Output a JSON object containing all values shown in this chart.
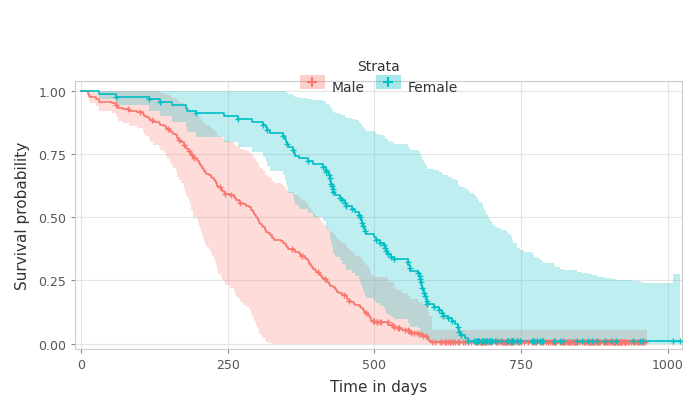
{
  "xlabel": "Time in days",
  "ylabel": "Survival probability",
  "legend_title": "Strata",
  "legend_labels": [
    "Male",
    "Female"
  ],
  "male_color": "#F8766D",
  "female_color": "#00BFC4",
  "fill_alpha": 0.25,
  "xlim": [
    -10,
    1025
  ],
  "ylim": [
    -0.02,
    1.04
  ],
  "xticks": [
    0,
    250,
    500,
    750,
    1000
  ],
  "yticks": [
    0.0,
    0.25,
    0.5,
    0.75,
    1.0
  ],
  "grid_color": "#E5E5E5",
  "male_t": [
    0,
    11,
    12,
    13,
    15,
    26,
    30,
    31,
    53,
    59,
    61,
    63,
    71,
    81,
    95,
    105,
    107,
    110,
    116,
    118,
    122,
    132,
    135,
    142,
    144,
    147,
    151,
    153,
    156,
    162,
    163,
    164,
    166,
    170,
    175,
    176,
    177,
    179,
    180,
    183,
    185,
    187,
    188,
    190,
    191,
    197,
    199,
    201,
    202,
    205,
    206,
    208,
    210,
    211,
    212,
    218,
    222,
    223,
    226,
    229,
    230,
    231,
    232,
    233,
    239,
    240,
    243,
    245,
    254,
    261,
    263,
    264,
    269,
    270,
    276,
    281,
    287,
    289,
    290,
    293,
    295,
    296,
    298,
    300,
    301,
    303,
    304,
    305,
    308,
    310,
    313,
    314,
    316,
    319,
    322,
    325,
    326,
    329,
    340,
    345,
    348,
    349,
    351,
    353,
    363,
    364,
    371,
    374,
    375,
    382,
    383,
    386,
    388,
    389,
    392,
    393,
    395,
    399,
    401,
    406,
    408,
    409,
    411,
    414,
    419,
    420,
    422,
    425,
    430,
    433,
    434,
    436,
    440,
    445,
    452,
    453,
    454,
    457,
    460,
    465,
    467,
    475,
    477,
    481,
    482,
    485,
    489,
    491,
    493,
    494,
    495,
    500,
    524,
    533,
    537,
    547,
    558,
    561,
    574,
    583,
    591,
    592,
    594,
    598,
    638,
    641,
    643,
    655,
    663,
    687,
    702,
    707,
    765,
    791,
    814,
    883,
    965
  ],
  "male_s": [
    1.0,
    0.994,
    0.988,
    0.982,
    0.976,
    0.97,
    0.964,
    0.958,
    0.952,
    0.946,
    0.94,
    0.933,
    0.927,
    0.921,
    0.915,
    0.909,
    0.903,
    0.897,
    0.891,
    0.885,
    0.879,
    0.873,
    0.867,
    0.861,
    0.855,
    0.848,
    0.842,
    0.836,
    0.83,
    0.824,
    0.818,
    0.812,
    0.806,
    0.8,
    0.794,
    0.788,
    0.782,
    0.776,
    0.769,
    0.763,
    0.757,
    0.751,
    0.745,
    0.739,
    0.733,
    0.727,
    0.721,
    0.715,
    0.709,
    0.703,
    0.697,
    0.691,
    0.684,
    0.678,
    0.672,
    0.666,
    0.66,
    0.654,
    0.648,
    0.642,
    0.636,
    0.63,
    0.624,
    0.618,
    0.612,
    0.606,
    0.6,
    0.593,
    0.587,
    0.581,
    0.575,
    0.569,
    0.563,
    0.557,
    0.551,
    0.545,
    0.539,
    0.533,
    0.527,
    0.521,
    0.514,
    0.508,
    0.502,
    0.496,
    0.49,
    0.484,
    0.478,
    0.472,
    0.466,
    0.46,
    0.454,
    0.448,
    0.442,
    0.436,
    0.43,
    0.423,
    0.417,
    0.411,
    0.405,
    0.399,
    0.393,
    0.387,
    0.381,
    0.375,
    0.369,
    0.363,
    0.357,
    0.351,
    0.345,
    0.339,
    0.333,
    0.326,
    0.32,
    0.314,
    0.308,
    0.302,
    0.296,
    0.29,
    0.284,
    0.278,
    0.272,
    0.266,
    0.26,
    0.254,
    0.248,
    0.242,
    0.235,
    0.229,
    0.223,
    0.217,
    0.211,
    0.205,
    0.199,
    0.193,
    0.187,
    0.181,
    0.175,
    0.169,
    0.163,
    0.157,
    0.151,
    0.145,
    0.139,
    0.132,
    0.126,
    0.12,
    0.114,
    0.108,
    0.102,
    0.096,
    0.09,
    0.084,
    0.075,
    0.066,
    0.06,
    0.054,
    0.048,
    0.042,
    0.036,
    0.03,
    0.024,
    0.018,
    0.012,
    0.006,
    0.006,
    0.006,
    0.006,
    0.006,
    0.006,
    0.006,
    0.006,
    0.006,
    0.006,
    0.006,
    0.006,
    0.006,
    0.006
  ],
  "male_upper": [
    1.0,
    1.0,
    1.0,
    1.0,
    1.0,
    1.0,
    1.0,
    1.0,
    1.0,
    1.0,
    1.0,
    1.0,
    1.0,
    1.0,
    1.0,
    1.0,
    1.0,
    1.0,
    1.0,
    1.0,
    0.999,
    0.996,
    0.993,
    0.99,
    0.987,
    0.983,
    0.98,
    0.976,
    0.973,
    0.969,
    0.966,
    0.962,
    0.958,
    0.954,
    0.95,
    0.946,
    0.942,
    0.938,
    0.934,
    0.93,
    0.926,
    0.922,
    0.918,
    0.913,
    0.909,
    0.905,
    0.9,
    0.896,
    0.892,
    0.887,
    0.883,
    0.878,
    0.874,
    0.869,
    0.865,
    0.86,
    0.855,
    0.851,
    0.846,
    0.841,
    0.837,
    0.832,
    0.827,
    0.822,
    0.817,
    0.812,
    0.807,
    0.802,
    0.797,
    0.792,
    0.787,
    0.782,
    0.777,
    0.772,
    0.767,
    0.762,
    0.756,
    0.751,
    0.746,
    0.74,
    0.735,
    0.729,
    0.724,
    0.718,
    0.713,
    0.707,
    0.701,
    0.696,
    0.69,
    0.684,
    0.678,
    0.673,
    0.667,
    0.661,
    0.655,
    0.649,
    0.643,
    0.637,
    0.631,
    0.625,
    0.619,
    0.613,
    0.607,
    0.6,
    0.594,
    0.588,
    0.582,
    0.575,
    0.569,
    0.563,
    0.556,
    0.55,
    0.543,
    0.537,
    0.53,
    0.524,
    0.517,
    0.51,
    0.504,
    0.497,
    0.49,
    0.483,
    0.477,
    0.47,
    0.463,
    0.456,
    0.449,
    0.442,
    0.435,
    0.428,
    0.421,
    0.414,
    0.407,
    0.4,
    0.392,
    0.385,
    0.378,
    0.371,
    0.363,
    0.356,
    0.348,
    0.341,
    0.333,
    0.326,
    0.318,
    0.31,
    0.303,
    0.295,
    0.287,
    0.279,
    0.271,
    0.263,
    0.245,
    0.224,
    0.213,
    0.201,
    0.188,
    0.175,
    0.163,
    0.151,
    0.139,
    0.127,
    0.109,
    0.055,
    0.055,
    0.055,
    0.055,
    0.055,
    0.055,
    0.055,
    0.055,
    0.055,
    0.055,
    0.055,
    0.055,
    0.055,
    0.055
  ],
  "male_lower": [
    1.0,
    0.982,
    0.971,
    0.96,
    0.951,
    0.941,
    0.932,
    0.922,
    0.913,
    0.903,
    0.893,
    0.883,
    0.873,
    0.863,
    0.852,
    0.842,
    0.831,
    0.821,
    0.81,
    0.799,
    0.788,
    0.777,
    0.766,
    0.754,
    0.743,
    0.731,
    0.72,
    0.708,
    0.696,
    0.684,
    0.672,
    0.66,
    0.648,
    0.636,
    0.624,
    0.612,
    0.6,
    0.588,
    0.576,
    0.563,
    0.551,
    0.539,
    0.527,
    0.515,
    0.503,
    0.49,
    0.478,
    0.466,
    0.454,
    0.442,
    0.43,
    0.418,
    0.406,
    0.394,
    0.382,
    0.37,
    0.358,
    0.346,
    0.334,
    0.323,
    0.311,
    0.299,
    0.288,
    0.276,
    0.265,
    0.253,
    0.242,
    0.231,
    0.219,
    0.208,
    0.197,
    0.186,
    0.175,
    0.165,
    0.154,
    0.143,
    0.133,
    0.123,
    0.113,
    0.103,
    0.093,
    0.084,
    0.075,
    0.066,
    0.057,
    0.049,
    0.041,
    0.034,
    0.027,
    0.021,
    0.015,
    0.01,
    0.006,
    0.003,
    0.001,
    0.0,
    0.0,
    0.0,
    0.0,
    0.0,
    0.0,
    0.0,
    0.0,
    0.0,
    0.0,
    0.0,
    0.0,
    0.0,
    0.0,
    0.0,
    0.0,
    0.0,
    0.0,
    0.0,
    0.0,
    0.0,
    0.0,
    0.0,
    0.0,
    0.0,
    0.0,
    0.0,
    0.0,
    0.0,
    0.0,
    0.0,
    0.0,
    0.0,
    0.0,
    0.0,
    0.0,
    0.0,
    0.0,
    0.0,
    0.0,
    0.0,
    0.0,
    0.0,
    0.0,
    0.0,
    0.0,
    0.0,
    0.0,
    0.0,
    0.0,
    0.0,
    0.0,
    0.0,
    0.0,
    0.0,
    0.0,
    0.0,
    0.0,
    0.0,
    0.0,
    0.0,
    0.0,
    0.0,
    0.0,
    0.0,
    0.0,
    0.0,
    0.0,
    0.0,
    0.0,
    0.0,
    0.0,
    0.0,
    0.0,
    0.0,
    0.0,
    0.0,
    0.0,
    0.0,
    0.0,
    0.0,
    0.0
  ],
  "female_t": [
    0,
    30,
    59,
    115,
    135,
    155,
    179,
    180,
    195,
    244,
    268,
    292,
    310,
    316,
    317,
    322,
    345,
    348,
    350,
    351,
    353,
    362,
    363,
    364,
    371,
    387,
    395,
    412,
    417,
    418,
    423,
    424,
    425,
    426,
    427,
    429,
    430,
    433,
    442,
    444,
    450,
    451,
    462,
    467,
    474,
    476,
    477,
    479,
    481,
    482,
    484,
    485,
    485,
    500,
    503,
    509,
    516,
    518,
    520,
    524,
    529,
    533,
    557,
    558,
    560,
    560,
    561,
    574,
    577,
    578,
    579,
    580,
    581,
    583,
    584,
    587,
    588,
    589,
    590,
    601,
    610,
    616,
    617,
    625,
    632,
    638,
    642,
    643,
    644,
    644,
    648,
    655,
    660,
    663,
    670,
    674,
    675,
    676,
    678,
    684,
    685,
    686,
    687,
    688,
    690,
    692,
    693,
    695,
    697,
    700,
    701,
    706,
    710,
    716,
    726,
    728,
    733,
    734,
    735,
    736,
    737,
    743,
    744,
    744,
    749,
    756,
    769,
    770,
    773,
    777,
    783,
    786,
    788,
    806,
    807,
    808,
    817,
    822,
    845,
    855,
    865,
    871,
    880,
    893,
    904,
    912,
    941,
    953,
    958,
    1010,
    1022
  ],
  "female_s": [
    1.0,
    0.989,
    0.978,
    0.967,
    0.956,
    0.944,
    0.933,
    0.922,
    0.911,
    0.9,
    0.889,
    0.878,
    0.867,
    0.856,
    0.844,
    0.833,
    0.822,
    0.811,
    0.8,
    0.789,
    0.778,
    0.767,
    0.756,
    0.744,
    0.733,
    0.722,
    0.711,
    0.7,
    0.689,
    0.678,
    0.667,
    0.656,
    0.644,
    0.633,
    0.622,
    0.611,
    0.6,
    0.589,
    0.578,
    0.567,
    0.556,
    0.544,
    0.533,
    0.522,
    0.511,
    0.5,
    0.489,
    0.478,
    0.467,
    0.456,
    0.444,
    0.433,
    0.433,
    0.422,
    0.411,
    0.4,
    0.389,
    0.378,
    0.367,
    0.356,
    0.344,
    0.333,
    0.322,
    0.311,
    0.3,
    0.3,
    0.289,
    0.278,
    0.267,
    0.256,
    0.244,
    0.233,
    0.222,
    0.211,
    0.2,
    0.189,
    0.178,
    0.167,
    0.156,
    0.144,
    0.133,
    0.122,
    0.111,
    0.1,
    0.089,
    0.078,
    0.067,
    0.056,
    0.044,
    0.044,
    0.033,
    0.022,
    0.011,
    0.011,
    0.011,
    0.011,
    0.011,
    0.011,
    0.011,
    0.011,
    0.011,
    0.011,
    0.011,
    0.011,
    0.011,
    0.011,
    0.011,
    0.011,
    0.011,
    0.011,
    0.011,
    0.011,
    0.011,
    0.011,
    0.011,
    0.011,
    0.011,
    0.011,
    0.011,
    0.011,
    0.011,
    0.011,
    0.011,
    0.011,
    0.011,
    0.011,
    0.011,
    0.011,
    0.011,
    0.011,
    0.011,
    0.011,
    0.011,
    0.011,
    0.011,
    0.011,
    0.011,
    0.011,
    0.011,
    0.011,
    0.011,
    0.011,
    0.011,
    0.011,
    0.011,
    0.011,
    0.011,
    0.011,
    0.011,
    0.011,
    0.011
  ],
  "female_upper": [
    1.0,
    1.0,
    1.0,
    1.0,
    1.0,
    1.0,
    1.0,
    1.0,
    1.0,
    1.0,
    1.0,
    1.0,
    1.0,
    1.0,
    1.0,
    1.0,
    1.0,
    0.999,
    0.995,
    0.992,
    0.988,
    0.984,
    0.98,
    0.976,
    0.972,
    0.968,
    0.963,
    0.959,
    0.955,
    0.95,
    0.946,
    0.941,
    0.937,
    0.932,
    0.928,
    0.923,
    0.918,
    0.913,
    0.909,
    0.904,
    0.899,
    0.894,
    0.889,
    0.884,
    0.879,
    0.874,
    0.868,
    0.863,
    0.858,
    0.853,
    0.847,
    0.842,
    0.842,
    0.836,
    0.831,
    0.825,
    0.82,
    0.814,
    0.808,
    0.803,
    0.797,
    0.791,
    0.785,
    0.78,
    0.774,
    0.774,
    0.768,
    0.762,
    0.756,
    0.75,
    0.743,
    0.737,
    0.731,
    0.725,
    0.718,
    0.712,
    0.706,
    0.699,
    0.693,
    0.686,
    0.68,
    0.673,
    0.666,
    0.66,
    0.653,
    0.646,
    0.639,
    0.632,
    0.625,
    0.625,
    0.618,
    0.611,
    0.604,
    0.597,
    0.589,
    0.582,
    0.575,
    0.567,
    0.56,
    0.553,
    0.545,
    0.538,
    0.53,
    0.523,
    0.515,
    0.508,
    0.5,
    0.493,
    0.485,
    0.478,
    0.47,
    0.463,
    0.456,
    0.448,
    0.441,
    0.434,
    0.426,
    0.419,
    0.412,
    0.405,
    0.398,
    0.391,
    0.384,
    0.377,
    0.37,
    0.364,
    0.357,
    0.35,
    0.344,
    0.337,
    0.331,
    0.325,
    0.319,
    0.313,
    0.307,
    0.302,
    0.296,
    0.291,
    0.285,
    0.28,
    0.275,
    0.27,
    0.265,
    0.26,
    0.255,
    0.251,
    0.246,
    0.242,
    0.238,
    0.275,
    0.275
  ],
  "female_lower": [
    1.0,
    0.968,
    0.944,
    0.921,
    0.9,
    0.878,
    0.858,
    0.837,
    0.817,
    0.797,
    0.778,
    0.759,
    0.74,
    0.721,
    0.702,
    0.684,
    0.666,
    0.648,
    0.631,
    0.614,
    0.597,
    0.58,
    0.564,
    0.547,
    0.531,
    0.516,
    0.5,
    0.485,
    0.47,
    0.455,
    0.44,
    0.426,
    0.412,
    0.397,
    0.383,
    0.37,
    0.356,
    0.343,
    0.33,
    0.317,
    0.304,
    0.292,
    0.279,
    0.267,
    0.255,
    0.244,
    0.232,
    0.221,
    0.21,
    0.2,
    0.189,
    0.179,
    0.179,
    0.169,
    0.159,
    0.15,
    0.14,
    0.131,
    0.122,
    0.114,
    0.105,
    0.097,
    0.089,
    0.082,
    0.074,
    0.074,
    0.067,
    0.061,
    0.055,
    0.049,
    0.043,
    0.038,
    0.033,
    0.028,
    0.024,
    0.02,
    0.016,
    0.013,
    0.01,
    0.008,
    0.006,
    0.004,
    0.002,
    0.001,
    0.001,
    0.0,
    0.0,
    0.0,
    0.0,
    0.0,
    0.0,
    0.0,
    0.0,
    0.0,
    0.0,
    0.0,
    0.0,
    0.0,
    0.0,
    0.0,
    0.0,
    0.0,
    0.0,
    0.0,
    0.0,
    0.0,
    0.0,
    0.0,
    0.0,
    0.0,
    0.0,
    0.0,
    0.0,
    0.0,
    0.0,
    0.0,
    0.0,
    0.0,
    0.0,
    0.0,
    0.0,
    0.0,
    0.0,
    0.0,
    0.0,
    0.0,
    0.0,
    0.0,
    0.0,
    0.0,
    0.0,
    0.0,
    0.0,
    0.0,
    0.0,
    0.0,
    0.0,
    0.0,
    0.0,
    0.0,
    0.0,
    0.0,
    0.0,
    0.0,
    0.0,
    0.0,
    0.0,
    0.0,
    0.0,
    0.0,
    0.0
  ],
  "male_censor_t": [
    60,
    80,
    100,
    120,
    148,
    167,
    176,
    184,
    189,
    192,
    236,
    246,
    255,
    271,
    359,
    376,
    404,
    415,
    449,
    457,
    485,
    497,
    499,
    504,
    505,
    509,
    512,
    523,
    530,
    534,
    540,
    542,
    552,
    557,
    559,
    563,
    567,
    572,
    576,
    580,
    583,
    588,
    598,
    604,
    612,
    616,
    621,
    622,
    625,
    629,
    631,
    634,
    637,
    643,
    644,
    652,
    654,
    659,
    664,
    671,
    674,
    675,
    677,
    681,
    682,
    683,
    684,
    685,
    686,
    688,
    689,
    691,
    693,
    697,
    699,
    707,
    710,
    712,
    717,
    720,
    721,
    722,
    723,
    725,
    727,
    730,
    731,
    733,
    734,
    735,
    736,
    740,
    745,
    747,
    750,
    756,
    762,
    769,
    771,
    774,
    775,
    783,
    785,
    787,
    788,
    792,
    796,
    799,
    803,
    806,
    807,
    808,
    809,
    816,
    819,
    820,
    821,
    823,
    826,
    829,
    831,
    832,
    833,
    836,
    839,
    840,
    842,
    844,
    845,
    849,
    855,
    857,
    860,
    861,
    865,
    866,
    867,
    868,
    870,
    871,
    873,
    875,
    876,
    879,
    880,
    882,
    883,
    884,
    890,
    892,
    893,
    895,
    897,
    899,
    902,
    906,
    907,
    908,
    909,
    910,
    911,
    914,
    915,
    917,
    918,
    919,
    920,
    921,
    923,
    925,
    927,
    930,
    933,
    935,
    938,
    941,
    943,
    944,
    948,
    949,
    951,
    953,
    956,
    957,
    958,
    961,
    968,
    971,
    976,
    979,
    982,
    983,
    988,
    991,
    998,
    1000,
    1005,
    1011,
    1022
  ],
  "female_censor_t": [
    60,
    115,
    135,
    195,
    268,
    310,
    317,
    345,
    351,
    362,
    387,
    412,
    417,
    418,
    423,
    424,
    426,
    427,
    429,
    430,
    442,
    444,
    450,
    451,
    462,
    474,
    476,
    479,
    481,
    484,
    503,
    509,
    516,
    518,
    520,
    524,
    529,
    533,
    557,
    560,
    574,
    577,
    578,
    579,
    581,
    584,
    587,
    589,
    590,
    601,
    610,
    616,
    617,
    625,
    632,
    642,
    644,
    648,
    660,
    670,
    674,
    675,
    676,
    678,
    684,
    685,
    686,
    688,
    690,
    692,
    695,
    697,
    700,
    701,
    706,
    710,
    716,
    726,
    728,
    733,
    734,
    735,
    736,
    737,
    743,
    744,
    749,
    769,
    770,
    773,
    777,
    783,
    786,
    788,
    806,
    807,
    817,
    822,
    845,
    855,
    865,
    871,
    880,
    893,
    904,
    912,
    941,
    953,
    958,
    1010,
    1022
  ]
}
